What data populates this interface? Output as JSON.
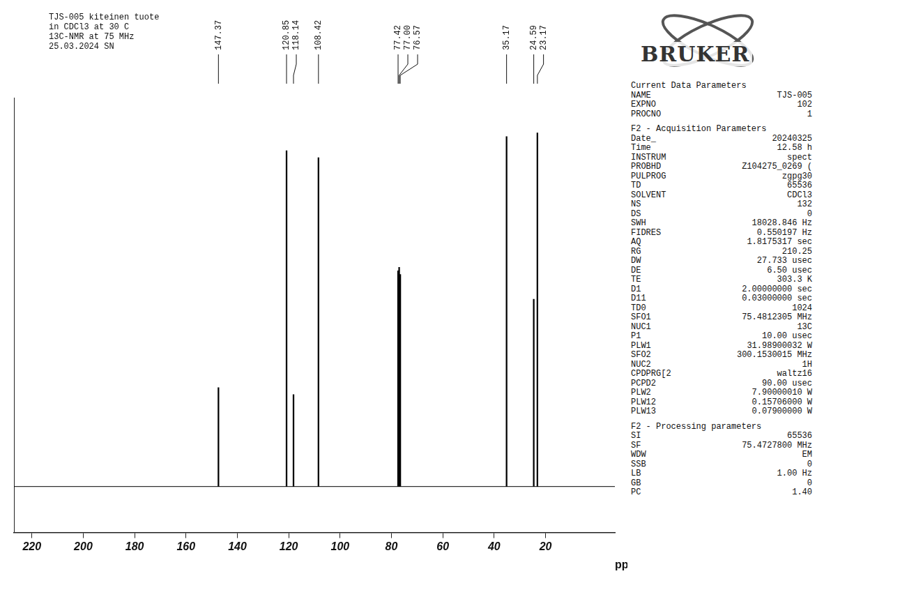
{
  "chart_data": {
    "type": "bar",
    "title": [
      "TJS-005 kiteinen tuote",
      "in CDCl3 at 30 C",
      "13C-NMR at 75 MHz",
      "25.03.2024 SN"
    ],
    "x": [
      147.37,
      120.85,
      118.14,
      108.42,
      77.42,
      77.0,
      76.57,
      35.17,
      24.59,
      23.17
    ],
    "values": [
      28,
      95,
      26,
      93,
      61,
      62,
      60,
      99,
      53,
      100
    ],
    "peak_labels": [
      "147.37",
      "120.85",
      "118.14",
      "108.42",
      "77.42",
      "77.00",
      "76.57",
      "35.17",
      "24.59",
      "23.17"
    ],
    "x_label": "ppm",
    "xlim": [
      227,
      -7
    ],
    "xticks": [
      220,
      200,
      180,
      160,
      140,
      120,
      100,
      80,
      60,
      40,
      20
    ],
    "ylim": [
      -13,
      110
    ],
    "color": "#000000",
    "grid": false,
    "tick_labels": "x"
  },
  "logo": "BRUKER",
  "parameters": [
    {
      "heading": "Current Data Parameters",
      "rows": [
        [
          "NAME",
          "TJS-005"
        ],
        [
          "EXPNO",
          "102"
        ],
        [
          "PROCNO",
          "1"
        ]
      ]
    },
    {
      "heading": "F2 - Acquisition Parameters",
      "rows": [
        [
          "Date_",
          "20240325"
        ],
        [
          "Time",
          "12.58 h"
        ],
        [
          "INSTRUM",
          "spect"
        ],
        [
          "PROBHD",
          "Z104275_0269 ("
        ],
        [
          "PULPROG",
          "zgpg30"
        ],
        [
          "TD",
          "65536"
        ],
        [
          "SOLVENT",
          "CDCl3"
        ],
        [
          "NS",
          "132"
        ],
        [
          "DS",
          "0"
        ],
        [
          "SWH",
          "18028.846 Hz"
        ],
        [
          "FIDRES",
          "0.550197 Hz"
        ],
        [
          "AQ",
          "1.8175317 sec"
        ],
        [
          "RG",
          "210.25"
        ],
        [
          "DW",
          "27.733 usec"
        ],
        [
          "DE",
          "6.50 usec"
        ],
        [
          "TE",
          "303.3 K"
        ],
        [
          "D1",
          "2.00000000 sec"
        ],
        [
          "D11",
          "0.03000000 sec"
        ],
        [
          "TD0",
          "1024"
        ],
        [
          "SFO1",
          "75.4812305 MHz"
        ],
        [
          "NUC1",
          "13C"
        ],
        [
          "P1",
          "10.00 usec"
        ],
        [
          "PLW1",
          "31.98900032 W"
        ],
        [
          "SFO2",
          "300.1530015 MHz"
        ],
        [
          "NUC2",
          "1H"
        ],
        [
          "CPDPRG[2",
          "waltz16"
        ],
        [
          "PCPD2",
          "90.00 usec"
        ],
        [
          "PLW2",
          "7.90000010 W"
        ],
        [
          "PLW12",
          "0.15706000 W"
        ],
        [
          "PLW13",
          "0.07900000 W"
        ]
      ]
    },
    {
      "heading": "F2 - Processing parameters",
      "rows": [
        [
          "SI",
          "65536"
        ],
        [
          "SF",
          "75.4727800 MHz"
        ],
        [
          "WDW",
          "EM"
        ],
        [
          "SSB",
          "0"
        ],
        [
          "LB",
          "1.00 Hz"
        ],
        [
          "GB",
          "0"
        ],
        [
          "PC",
          "1.40"
        ]
      ]
    }
  ]
}
